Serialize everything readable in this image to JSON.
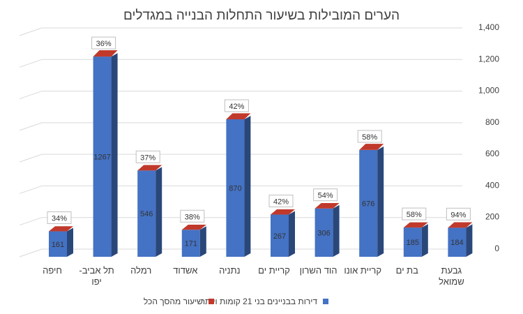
{
  "chart_data": {
    "type": "bar",
    "title": "הערים המובילות בשיעור התחלות הבנייה במגדלים",
    "categories": [
      "חיפה",
      "תל אביב-יפו",
      "רמלה",
      "אשדוד",
      "נתניה",
      "קריית ים",
      "הוד השרון",
      "קריית אונו",
      "בת ים",
      "גבעת שמואל"
    ],
    "category_lines": [
      [
        "חיפה"
      ],
      [
        "תל אביב-",
        "יפו"
      ],
      [
        "רמלה"
      ],
      [
        "אשדוד"
      ],
      [
        "נתניה"
      ],
      [
        "קריית ים"
      ],
      [
        "הוד השרון"
      ],
      [
        "קריית אונו"
      ],
      [
        "בת ים"
      ],
      [
        "גבעת",
        "שמואל"
      ]
    ],
    "series": [
      {
        "name": "דירות בבניינים בני 21 קומות ויותר",
        "values": [
          161,
          1267,
          546,
          171,
          870,
          267,
          306,
          676,
          185,
          184
        ],
        "color": "#4472C4"
      },
      {
        "name": "שיעור מהסך הכל",
        "values": [
          34,
          36,
          37,
          38,
          42,
          42,
          54,
          58,
          58,
          94
        ],
        "labels": [
          "34%",
          "36%",
          "37%",
          "38%",
          "42%",
          "42%",
          "54%",
          "58%",
          "58%",
          "94%"
        ],
        "color": "#C0392B"
      }
    ],
    "y_axis": {
      "side": "right",
      "ticks": [
        "0",
        "200",
        "400",
        "600",
        "800",
        "1,000",
        "1,200",
        "1,400"
      ],
      "tick_values": [
        0,
        200,
        400,
        600,
        800,
        1000,
        1200,
        1400
      ]
    },
    "ylim": [
      0,
      1400
    ],
    "grid": true,
    "legend_position": "bottom"
  }
}
